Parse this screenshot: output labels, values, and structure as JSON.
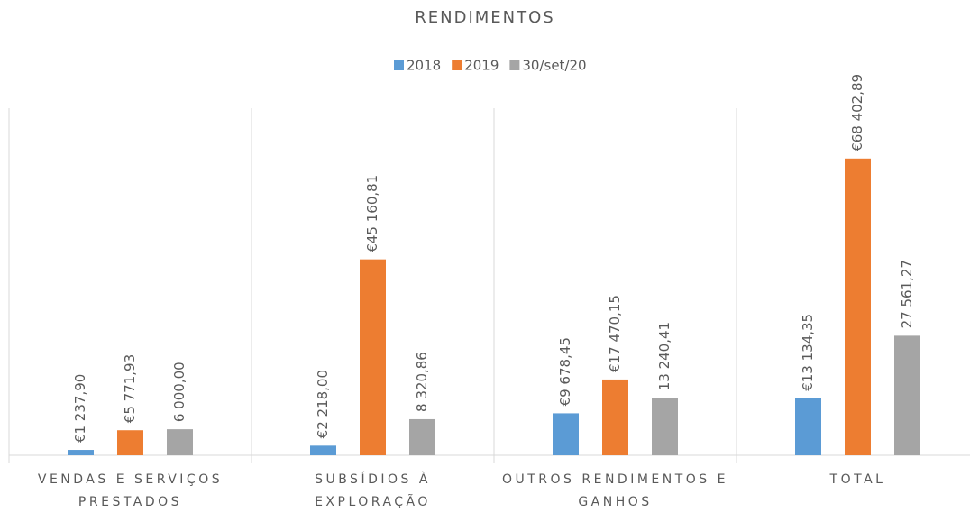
{
  "chart_data": {
    "type": "bar",
    "title": "RENDIMENTOS",
    "categories": [
      "VENDAS E SERVIÇOS PRESTADOS",
      "SUBSÍDIOS À EXPLORAÇÃO",
      "OUTROS RENDIMENTOS E GANHOS",
      "TOTAL"
    ],
    "series": [
      {
        "name": "2018",
        "color": "#5b9bd5",
        "values": [
          1237.9,
          2218.0,
          9678.45,
          13134.35
        ],
        "value_labels": [
          "€1 237,90",
          "€2 218,00",
          "€9 678,45",
          "€13 134,35"
        ]
      },
      {
        "name": "2019",
        "color": "#ed7d31",
        "values": [
          5771.93,
          45160.81,
          17470.15,
          68402.89
        ],
        "value_labels": [
          "€5 771,93",
          "€45 160,81",
          "€17 470,15",
          "€68 402,89"
        ]
      },
      {
        "name": "30/set/20",
        "color": "#a5a5a5",
        "values": [
          6000.0,
          8320.86,
          13240.41,
          27561.27
        ],
        "value_labels": [
          "6 000,00",
          "8 320,86",
          "13 240,41",
          "27 561,27"
        ]
      }
    ],
    "ylim": [
      0,
      80000
    ],
    "legend": "top"
  }
}
